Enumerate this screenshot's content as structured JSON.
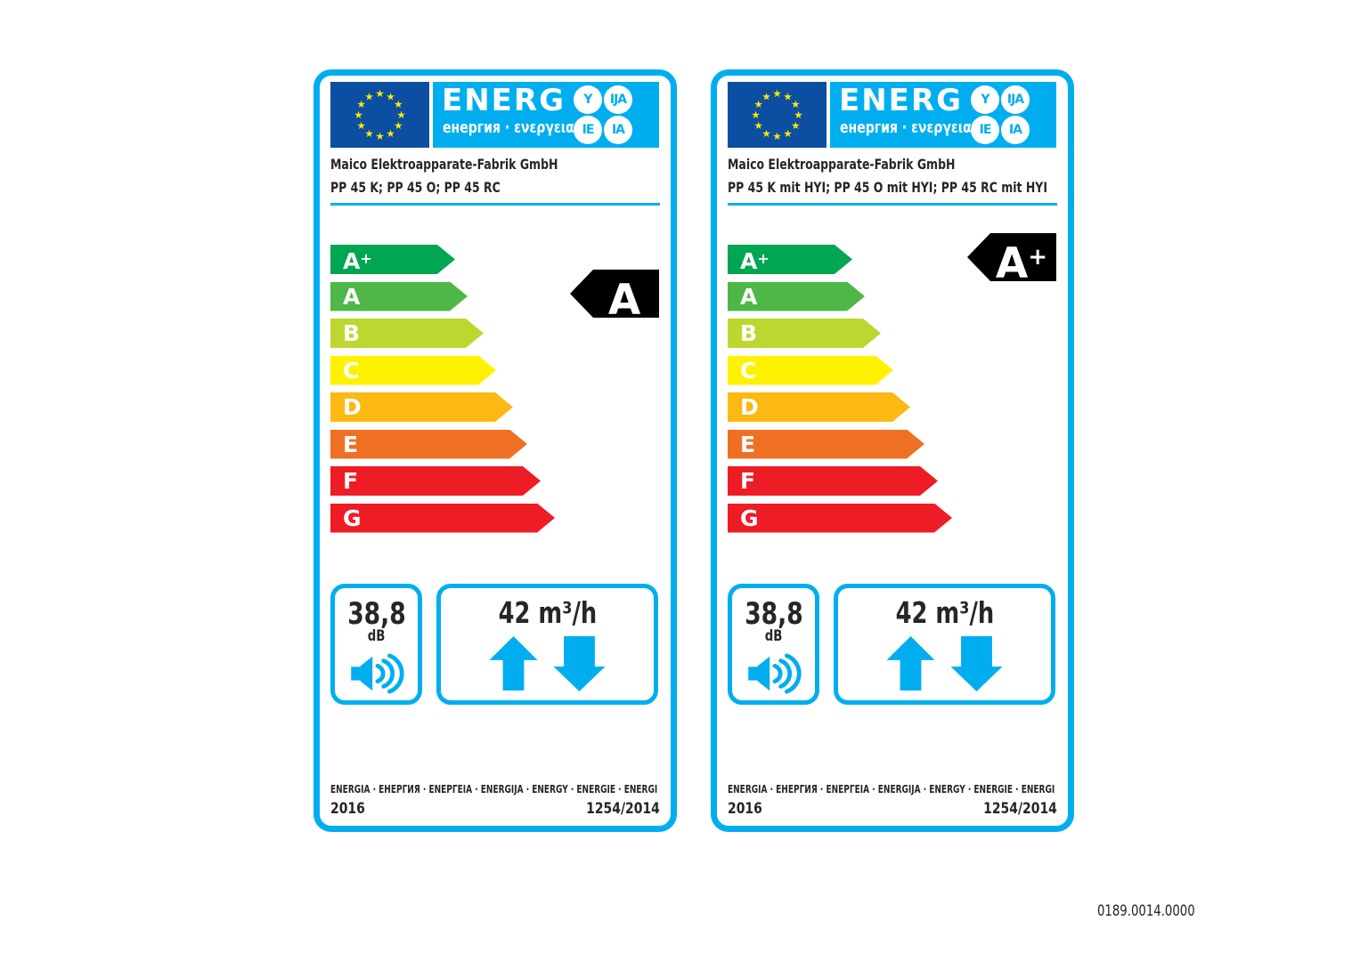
{
  "page": {
    "code": "0189.0014.0000"
  },
  "header": {
    "title": "ENERG",
    "subtitle": "енергия · ενεργεια",
    "circles": [
      "Y",
      "IJA",
      "IE",
      "IA"
    ]
  },
  "scale": [
    {
      "grade": "A+",
      "color": "#00A651"
    },
    {
      "grade": "A",
      "color": "#4FB748"
    },
    {
      "grade": "B",
      "color": "#BED630"
    },
    {
      "grade": "C",
      "color": "#FFF200"
    },
    {
      "grade": "D",
      "color": "#FCB813"
    },
    {
      "grade": "E",
      "color": "#F07023"
    },
    {
      "grade": "F",
      "color": "#EE1C25"
    },
    {
      "grade": "G",
      "color": "#EE1C25"
    }
  ],
  "labels": [
    {
      "supplier": "Maico Elektroapparate-Fabrik GmbH",
      "model": "PP 45 K; PP 45 O; PP 45 RC",
      "rating": {
        "letter": "A",
        "plus": ""
      },
      "noise": {
        "value": "38,8",
        "unit": "dB"
      },
      "airflow": {
        "value": "42 m³/h"
      },
      "footer": {
        "languages": "ENERGIA · ЕНЕРГИЯ · ΕΝΕΡΓΕΙΑ · ENERGIJA · ENERGY · ENERGIE · ENERGI",
        "year": "2016",
        "regulation": "1254/2014"
      }
    },
    {
      "supplier": "Maico Elektroapparate-Fabrik GmbH",
      "model": "PP 45 K mit HYI; PP 45 O mit HYI; PP 45 RC mit HYI",
      "rating": {
        "letter": "A",
        "plus": "+"
      },
      "noise": {
        "value": "38,8",
        "unit": "dB"
      },
      "airflow": {
        "value": "42 m³/h"
      },
      "footer": {
        "languages": "ENERGIA · ЕНЕРГИЯ · ΕΝΕΡΓΕΙΑ · ENERGIJA · ENERGY · ENERGIE · ENERGI",
        "year": "2016",
        "regulation": "1254/2014"
      }
    }
  ],
  "colors": {
    "accent_cyan": "#00AEEF",
    "eu_flag_blue": "#0B4EA2",
    "star_yellow": "#FFE800",
    "rating_arrow_black": "#000000"
  },
  "icons": {
    "noise": "speaker-icon",
    "airflow": [
      "arrow-up-icon",
      "arrow-down-icon"
    ],
    "flag": "eu-flag-icon"
  }
}
